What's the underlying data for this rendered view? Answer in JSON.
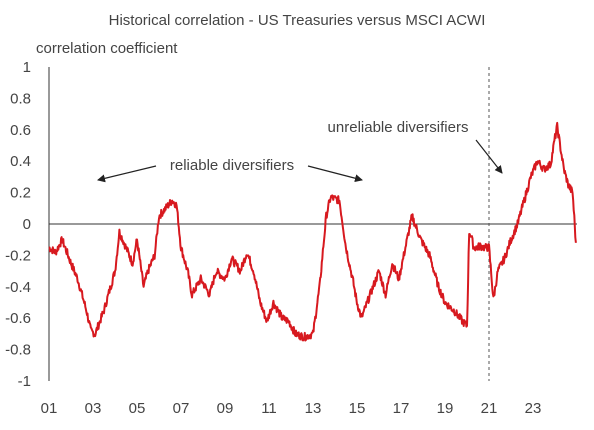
{
  "chart_data": {
    "type": "line",
    "title": "Historical correlation - US Treasuries versus MSCI ACWI",
    "ylabel": "correlation coefficient",
    "xlabel": "",
    "xlim": [
      2001,
      2025
    ],
    "ylim": [
      -1,
      1
    ],
    "x_ticks": [
      "01",
      "03",
      "05",
      "07",
      "09",
      "11",
      "13",
      "15",
      "17",
      "19",
      "21",
      "23"
    ],
    "y_ticks": [
      "1",
      "0.8",
      "0.6",
      "0.4",
      "0.2",
      "0",
      "-0.2",
      "-0.4",
      "-0.6",
      "-0.8",
      "-1"
    ],
    "grid": false,
    "zero_line": true,
    "vertical_marker_x": 2021,
    "line_color": "#d7191f",
    "annotations": [
      {
        "text": "reliable diversifiers"
      },
      {
        "text": "unreliable diversifiers"
      }
    ],
    "series": [
      {
        "x": [
          2001.0,
          2001.3,
          2001.6,
          2002.0,
          2002.3,
          2002.7,
          2002.9,
          2003.1,
          2003.5,
          2003.8,
          2004.0,
          2004.2,
          2004.5,
          2004.8,
          2005.0,
          2005.3,
          2005.5,
          2005.8,
          2006.0,
          2006.3,
          2006.6,
          2006.8,
          2007.0,
          2007.3,
          2007.5,
          2007.9,
          2008.3,
          2008.6,
          2009.0,
          2009.3,
          2009.7,
          2010.0,
          2010.3,
          2010.6,
          2010.9,
          2011.2,
          2011.6,
          2011.9,
          2012.2,
          2012.6,
          2013.0,
          2013.3,
          2013.6,
          2013.8,
          2014.2,
          2014.5,
          2014.8,
          2015.0,
          2015.2,
          2015.6,
          2016.0,
          2016.3,
          2016.6,
          2016.9,
          2017.2,
          2017.5,
          2017.9,
          2018.3,
          2018.7,
          2019.0,
          2019.4,
          2019.8,
          2020.0,
          2020.1,
          2020.2,
          2020.3,
          2020.45,
          2020.6,
          2020.8,
          2021.0,
          2021.2,
          2021.4,
          2021.7,
          2022.0,
          2022.3,
          2022.6,
          2022.9,
          2023.2,
          2023.5,
          2023.8,
          2024.0,
          2024.1,
          2024.4,
          2024.6,
          2024.8,
          2024.95
        ],
        "values": [
          -0.15,
          -0.18,
          -0.1,
          -0.25,
          -0.35,
          -0.55,
          -0.68,
          -0.7,
          -0.55,
          -0.4,
          -0.3,
          -0.05,
          -0.15,
          -0.25,
          -0.1,
          -0.4,
          -0.3,
          -0.2,
          0.05,
          0.1,
          0.15,
          0.12,
          -0.15,
          -0.3,
          -0.45,
          -0.35,
          -0.45,
          -0.3,
          -0.35,
          -0.22,
          -0.3,
          -0.18,
          -0.3,
          -0.5,
          -0.62,
          -0.5,
          -0.6,
          -0.62,
          -0.7,
          -0.72,
          -0.7,
          -0.4,
          0.05,
          0.17,
          0.15,
          -0.15,
          -0.35,
          -0.5,
          -0.6,
          -0.45,
          -0.3,
          -0.45,
          -0.25,
          -0.35,
          -0.15,
          0.05,
          -0.1,
          -0.2,
          -0.4,
          -0.5,
          -0.55,
          -0.62,
          -0.65,
          -0.05,
          -0.08,
          -0.15,
          -0.15,
          -0.14,
          -0.15,
          -0.15,
          -0.48,
          -0.3,
          -0.22,
          -0.1,
          0.0,
          0.15,
          0.3,
          0.4,
          0.35,
          0.38,
          0.55,
          0.62,
          0.35,
          0.25,
          0.2,
          -0.12
        ]
      }
    ]
  }
}
